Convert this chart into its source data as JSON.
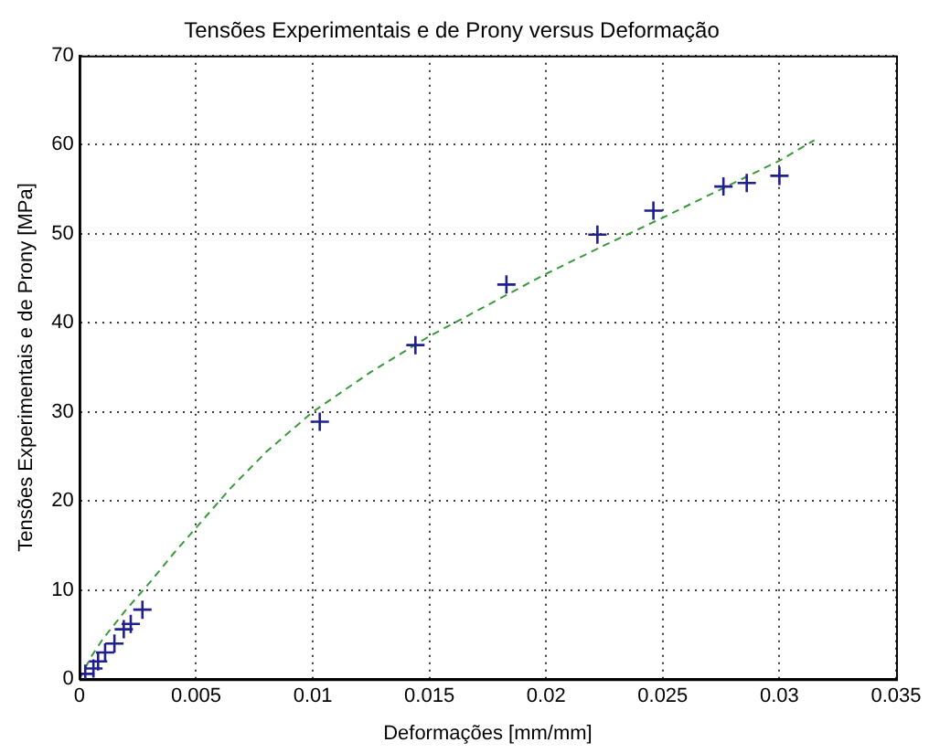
{
  "chart_data": {
    "type": "scatter",
    "title": "Tensões Experimentais e de Prony versus Deformação",
    "xlabel": "Deformações [mm/mm]",
    "ylabel": "Tensões Experimentais e de Prony [MPa]",
    "xlim": [
      0,
      0.035
    ],
    "xticks": [
      0,
      0.005,
      0.01,
      0.015,
      0.02,
      0.025,
      0.03,
      0.035
    ],
    "ylim": [
      0,
      70
    ],
    "yticks": [
      0,
      10,
      20,
      30,
      40,
      50,
      60,
      70
    ],
    "grid": true,
    "legend": false,
    "series": [
      {
        "type": "scatter",
        "color": "#1f1f8f",
        "marker": "cross",
        "x": [
          0.00025,
          0.0006,
          0.0008,
          0.0011,
          0.0015,
          0.0019,
          0.0022,
          0.0027,
          0.0103,
          0.0144,
          0.0183,
          0.0222,
          0.0246,
          0.0276,
          0.0286,
          0.03
        ],
        "values": [
          0.6,
          1.2,
          2,
          3,
          4,
          5.6,
          6.2,
          7.8,
          28.9,
          37.5,
          44.3,
          49.9,
          52.6,
          55.3,
          55.7,
          56.5
        ]
      },
      {
        "type": "line",
        "color": "#3a9a3a",
        "marker": "none",
        "line_style": "dashed",
        "x": [
          0,
          0.0005,
          0.001,
          0.002,
          0.003,
          0.004,
          0.005,
          0.0065,
          0.008,
          0.01,
          0.0125,
          0.015,
          0.0175,
          0.02,
          0.0225,
          0.025,
          0.0275,
          0.03,
          0.0315
        ],
        "values": [
          0,
          2.5,
          4.5,
          7.8,
          10.8,
          14,
          17,
          21.5,
          25.5,
          30,
          34.5,
          38.5,
          42,
          45.5,
          48.7,
          51.8,
          55,
          58.2,
          60.5
        ]
      }
    ]
  }
}
